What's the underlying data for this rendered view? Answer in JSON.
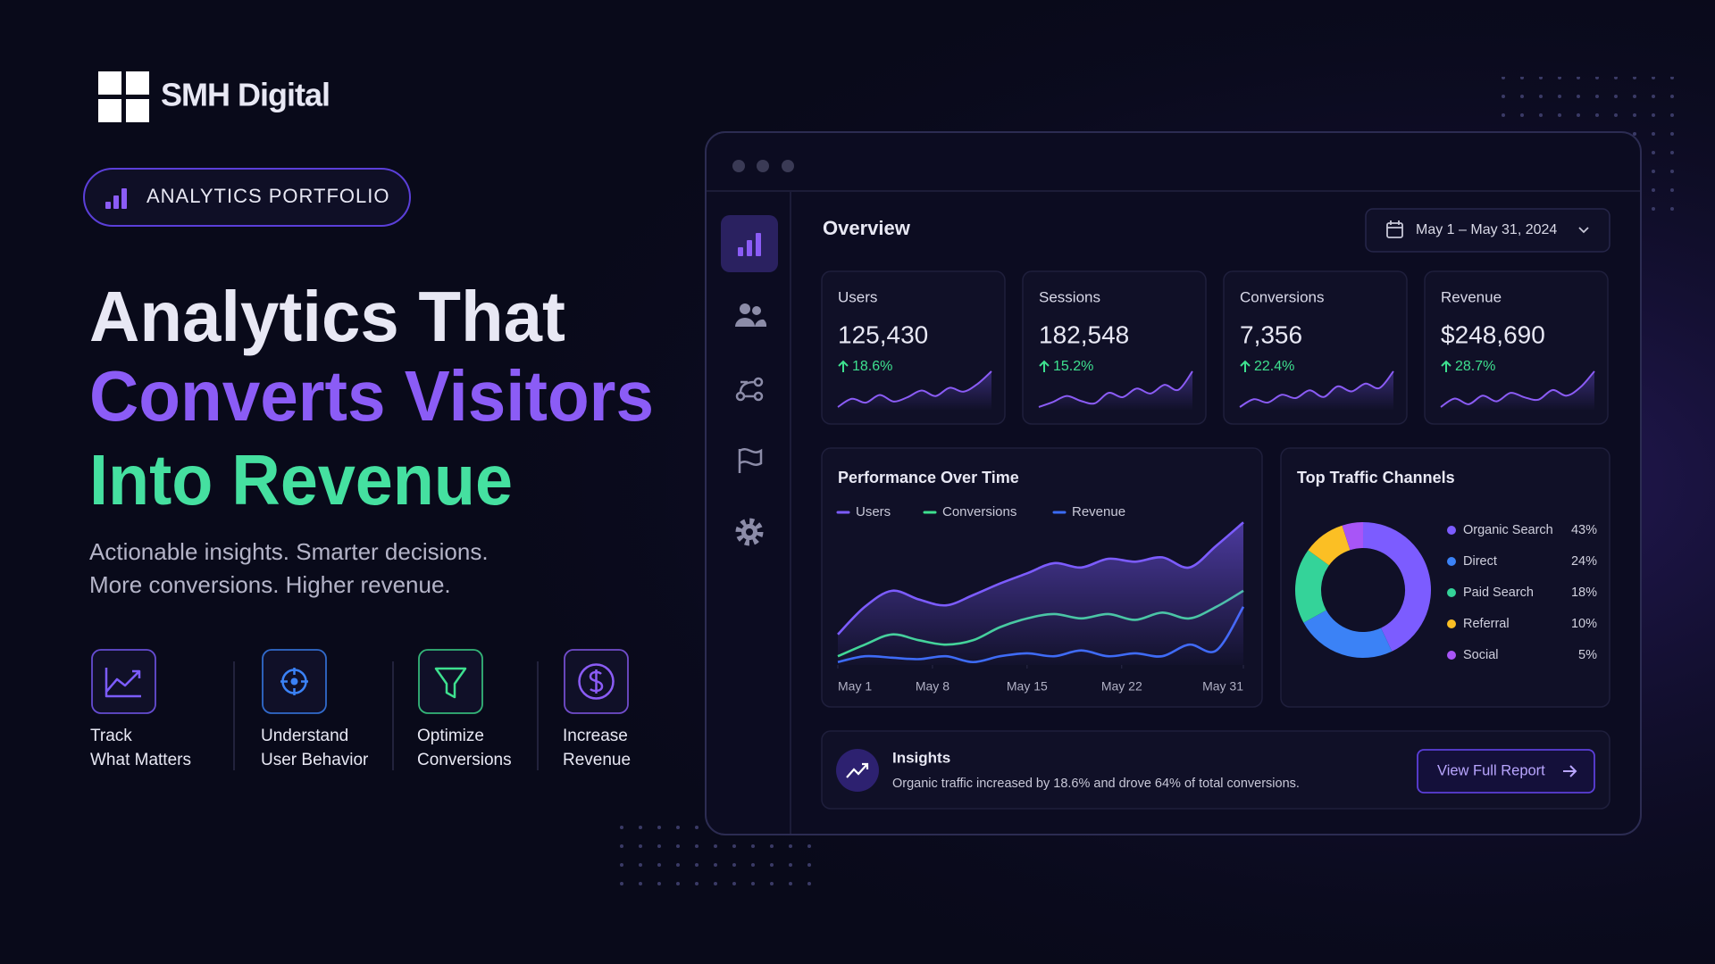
{
  "brand": {
    "name": "SMH Digital"
  },
  "badge": "ANALYTICS PORTFOLIO",
  "headline": [
    "Analytics That",
    "Converts Visitors",
    "Into Revenue"
  ],
  "subtitle": [
    "Actionable insights. Smarter decisions.",
    "More conversions. Higher revenue."
  ],
  "features": [
    {
      "lines": [
        "Track",
        "What Matters"
      ]
    },
    {
      "lines": [
        "Understand",
        "User Behavior"
      ]
    },
    {
      "lines": [
        "Optimize",
        "Conversions"
      ]
    },
    {
      "lines": [
        "Increase",
        "Revenue"
      ]
    }
  ],
  "dashboard": {
    "title": "Overview",
    "date_range": "May 1 – May 31, 2024",
    "kpis": [
      {
        "label": "Users",
        "value": "125,430",
        "change": "18.6%",
        "trend": [
          20,
          35,
          28,
          42,
          30,
          38,
          50,
          40,
          55,
          48,
          62,
          85
        ]
      },
      {
        "label": "Sessions",
        "value": "182,548",
        "change": "15.2%",
        "trend": [
          22,
          30,
          40,
          32,
          28,
          45,
          38,
          52,
          44,
          58,
          50,
          80
        ]
      },
      {
        "label": "Conversions",
        "value": "7,356",
        "change": "22.4%",
        "trend": [
          18,
          32,
          26,
          40,
          34,
          48,
          36,
          55,
          46,
          60,
          52,
          82
        ]
      },
      {
        "label": "Revenue",
        "value": "$248,690",
        "change": "28.7%",
        "trend": [
          25,
          40,
          30,
          45,
          35,
          50,
          42,
          38,
          55,
          45,
          60,
          88
        ]
      }
    ],
    "insights": {
      "title": "Insights",
      "text": "Organic traffic increased by 18.6% and drove 64% of total conversions.",
      "button": "View Full Report"
    }
  },
  "chart_data": [
    {
      "type": "line",
      "title": "Performance Over Time",
      "x": [
        1,
        3,
        5,
        7,
        9,
        11,
        13,
        15,
        17,
        19,
        21,
        23,
        25,
        27,
        29,
        31
      ],
      "xlim": [
        1,
        31
      ],
      "xticks": [
        {
          "value": 1,
          "label": "May 1"
        },
        {
          "value": 8,
          "label": "May 8"
        },
        {
          "value": 15,
          "label": "May 15"
        },
        {
          "value": 22,
          "label": "May 22"
        },
        {
          "value": 31,
          "label": "May 31"
        }
      ],
      "ylim": [
        0,
        100
      ],
      "series": [
        {
          "name": "Users",
          "color": "#7c5cff",
          "values": [
            21,
            40,
            51,
            45,
            41,
            48,
            56,
            63,
            70,
            67,
            73,
            71,
            74,
            67,
            82,
            98
          ]
        },
        {
          "name": "Conversions",
          "color": "#3ee08f",
          "values": [
            6,
            14,
            21,
            17,
            14,
            17,
            26,
            32,
            35,
            32,
            35,
            31,
            36,
            32,
            40,
            51
          ]
        },
        {
          "name": "Revenue",
          "color": "#3b6cf6",
          "values": [
            2,
            6,
            5,
            4,
            6,
            2,
            6,
            8,
            6,
            10,
            6,
            8,
            6,
            14,
            10,
            40
          ]
        }
      ]
    },
    {
      "type": "pie",
      "title": "Top Traffic Channels",
      "donut": true,
      "categories": [
        "Organic Search",
        "Direct",
        "Paid Search",
        "Referral",
        "Social"
      ],
      "values": [
        43,
        24,
        18,
        10,
        5
      ],
      "value_labels": [
        "43%",
        "24%",
        "18%",
        "10%",
        "5%"
      ],
      "colors": [
        "#7c5cff",
        "#3b82f6",
        "#34d399",
        "#fbbf24",
        "#a855f7"
      ]
    }
  ]
}
